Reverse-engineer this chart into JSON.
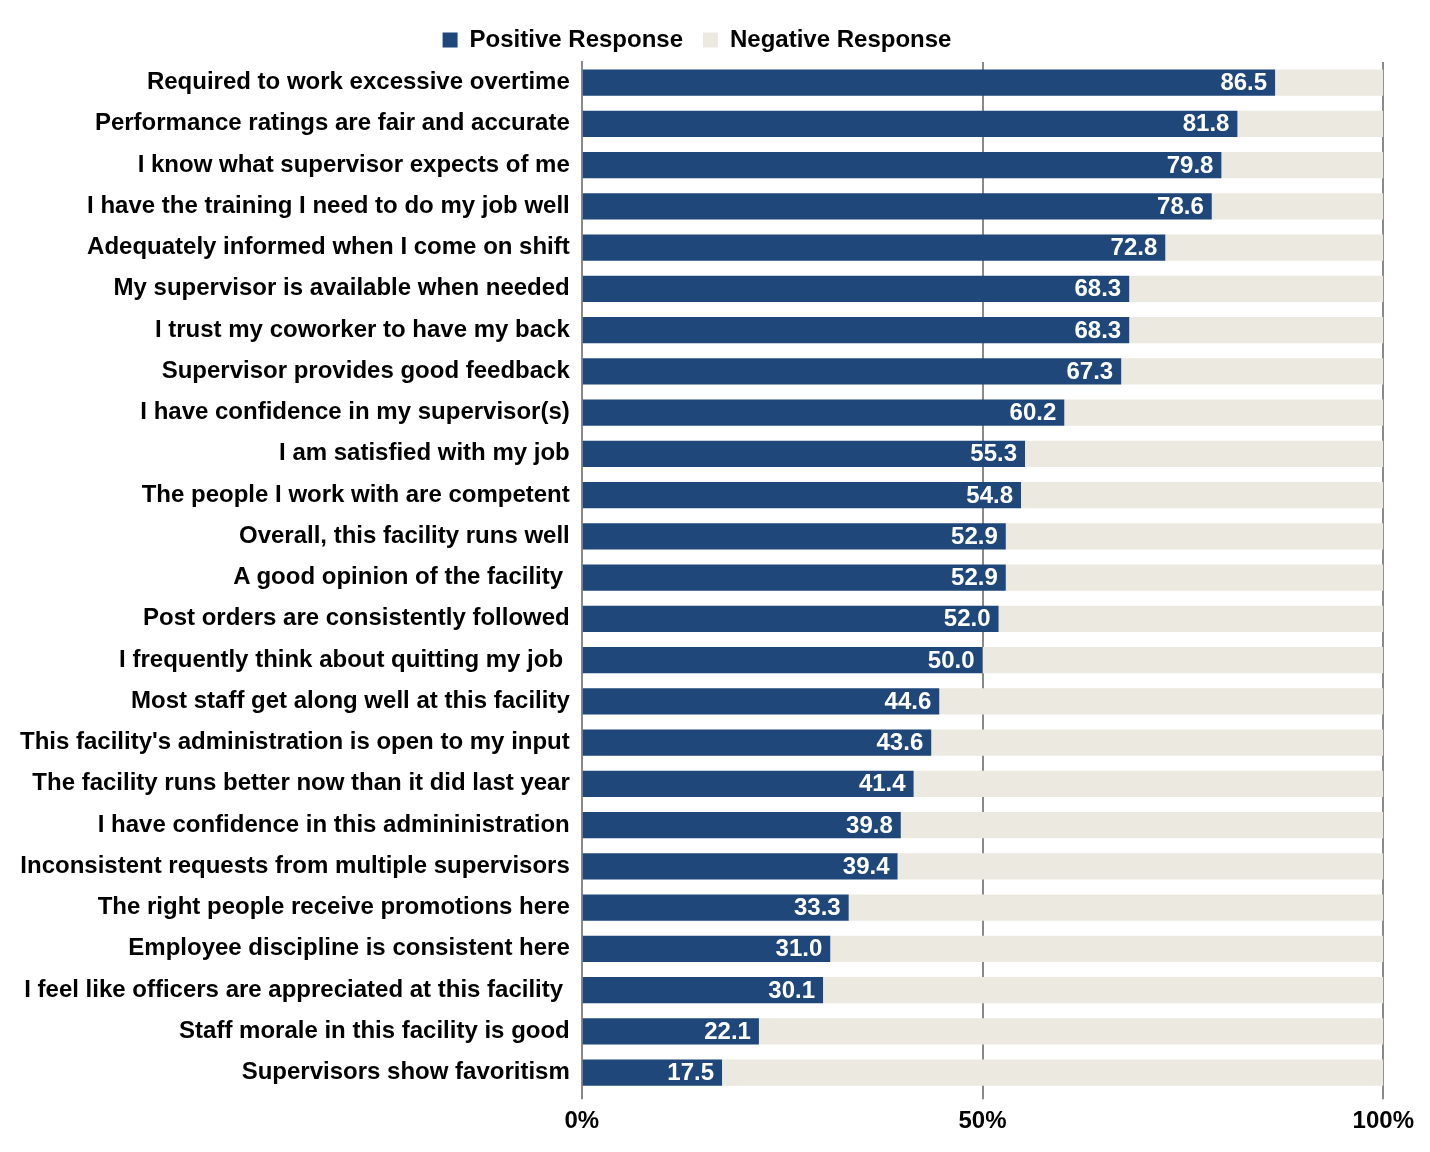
{
  "chart_data": {
    "type": "bar",
    "orientation": "horizontal",
    "stacked": true,
    "categories": [
      "Required to work excessive overtime",
      "Performance ratings are fair and accurate",
      "I know what supervisor expects of me",
      "I have the training I need to do my job well",
      "Adequately informed when I come on shift",
      "My supervisor is available when needed",
      "I trust my coworker to have my back",
      "Supervisor provides good feedback",
      "I have confidence in my supervisor(s)",
      "I am satisfied with my job",
      "The people I work with are competent",
      "Overall, this facility runs well",
      "A good opinion of the facility ",
      "Post orders are consistently followed",
      "I frequently think about quitting my job ",
      "Most staff get along well at this facility",
      "This facility's administration is open to my input",
      "The facility runs better now than it did last year",
      "I have confidence in this admininistration",
      "Inconsistent requests from multiple supervisors",
      "The right people receive promotions here",
      "Employee discipline is consistent here",
      "I feel like officers are appreciated at this facility ",
      "Staff morale in this facility is good",
      "Supervisors show favoritism"
    ],
    "series": [
      {
        "name": "Positive Response",
        "color": "#1f477a",
        "values": [
          86.5,
          81.8,
          79.8,
          78.6,
          72.8,
          68.3,
          68.3,
          67.3,
          60.2,
          55.3,
          54.8,
          52.9,
          52.9,
          52.0,
          50.0,
          44.6,
          43.6,
          41.4,
          39.8,
          39.4,
          33.3,
          31.0,
          30.1,
          22.1,
          17.5
        ],
        "value_labels": [
          "86.5",
          "81.8",
          "79.8",
          "78.6",
          "72.8",
          "68.3",
          "68.3",
          "67.3",
          "60.2",
          "55.3",
          "54.8",
          "52.9",
          "52.9",
          "52.0",
          "50.0",
          "44.6",
          "43.6",
          "41.4",
          "39.8",
          "39.4",
          "33.3",
          "31.0",
          "30.1",
          "22.1",
          "17.5"
        ]
      },
      {
        "name": "Negative Response",
        "color": "#ece9e0",
        "values": [
          13.5,
          18.2,
          20.2,
          21.4,
          27.2,
          31.7,
          31.7,
          32.7,
          39.8,
          44.7,
          45.2,
          47.1,
          47.1,
          48.0,
          50.0,
          55.4,
          56.4,
          58.6,
          60.2,
          60.6,
          66.7,
          69.0,
          69.9,
          77.9,
          82.5
        ]
      }
    ],
    "xlim": [
      0,
      100
    ],
    "xticks": [
      {
        "value": 0,
        "label": "0%"
      },
      {
        "value": 50,
        "label": "50%"
      },
      {
        "value": 100,
        "label": "100%"
      }
    ],
    "grid": "x",
    "legend": "top"
  }
}
